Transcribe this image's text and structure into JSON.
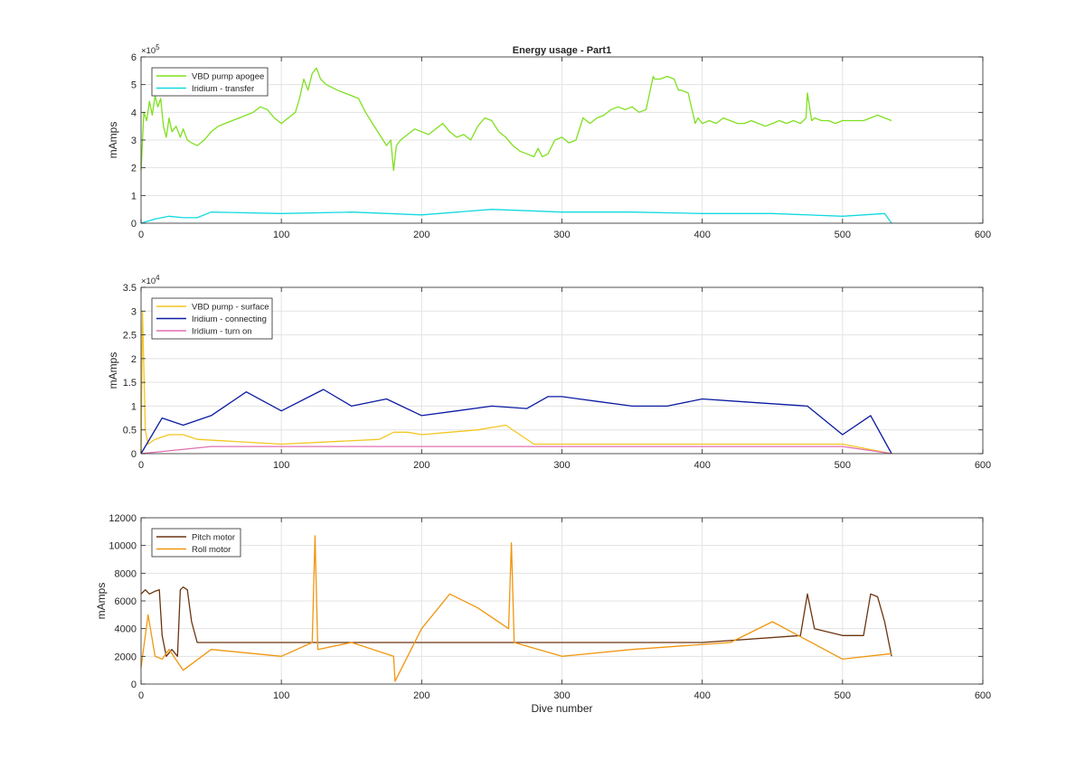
{
  "figure_title": "Energy usage - Part1",
  "chart_data": [
    {
      "type": "line",
      "title": "Energy usage - Part1",
      "xlabel": "",
      "ylabel": "mAmps",
      "xlim": [
        0,
        600
      ],
      "ylim": [
        0,
        600000
      ],
      "x_ticks": [
        0,
        100,
        200,
        300,
        400,
        500,
        600
      ],
      "y_ticks": [
        0,
        100000,
        200000,
        300000,
        400000,
        500000,
        600000
      ],
      "y_tick_labels": [
        "0",
        "1",
        "2",
        "3",
        "4",
        "5",
        "6"
      ],
      "y_exponent_label": "×10",
      "y_exponent_power": "5",
      "grid": true,
      "legend_position": "top-left",
      "series": [
        {
          "name": "VBD pump apogee",
          "color": "#7fe01f",
          "x": [
            0,
            2,
            4,
            6,
            8,
            10,
            12,
            14,
            16,
            18,
            20,
            22,
            25,
            28,
            30,
            33,
            36,
            40,
            45,
            50,
            55,
            60,
            65,
            70,
            75,
            80,
            85,
            90,
            95,
            100,
            105,
            110,
            113,
            116,
            119,
            122,
            125,
            128,
            132,
            136,
            140,
            145,
            150,
            155,
            160,
            165,
            170,
            175,
            178,
            180,
            182,
            185,
            190,
            195,
            200,
            205,
            210,
            215,
            220,
            225,
            230,
            235,
            240,
            245,
            250,
            255,
            260,
            265,
            270,
            275,
            280,
            283,
            286,
            290,
            295,
            300,
            305,
            310,
            315,
            320,
            325,
            330,
            335,
            340,
            345,
            350,
            355,
            360,
            365,
            366,
            370,
            375,
            380,
            383,
            385,
            390,
            395,
            397,
            400,
            405,
            410,
            415,
            420,
            425,
            430,
            435,
            440,
            445,
            450,
            455,
            460,
            465,
            470,
            474,
            475,
            478,
            480,
            485,
            490,
            495,
            500,
            505,
            510,
            515,
            520,
            525,
            530,
            535
          ],
          "values": [
            190000,
            400000,
            370000,
            440000,
            390000,
            460000,
            420000,
            450000,
            350000,
            310000,
            380000,
            330000,
            350000,
            310000,
            340000,
            300000,
            290000,
            280000,
            300000,
            330000,
            350000,
            360000,
            370000,
            380000,
            390000,
            400000,
            420000,
            410000,
            380000,
            360000,
            380000,
            400000,
            450000,
            520000,
            480000,
            540000,
            560000,
            520000,
            500000,
            490000,
            480000,
            470000,
            460000,
            450000,
            400000,
            360000,
            320000,
            280000,
            300000,
            190000,
            280000,
            300000,
            320000,
            340000,
            330000,
            320000,
            340000,
            360000,
            330000,
            310000,
            320000,
            300000,
            350000,
            380000,
            370000,
            330000,
            310000,
            280000,
            260000,
            250000,
            240000,
            270000,
            240000,
            250000,
            300000,
            310000,
            290000,
            300000,
            380000,
            360000,
            380000,
            390000,
            410000,
            420000,
            410000,
            420000,
            400000,
            410000,
            530000,
            520000,
            520000,
            530000,
            520000,
            480000,
            480000,
            470000,
            360000,
            380000,
            360000,
            370000,
            360000,
            380000,
            370000,
            360000,
            360000,
            370000,
            360000,
            350000,
            360000,
            370000,
            360000,
            370000,
            360000,
            380000,
            470000,
            370000,
            380000,
            370000,
            370000,
            360000,
            370000,
            370000,
            370000,
            370000,
            380000,
            390000,
            380000,
            370000
          ]
        },
        {
          "name": "Iridium - transfer",
          "color": "#11d9e0",
          "x": [
            0,
            10,
            20,
            30,
            40,
            50,
            100,
            150,
            200,
            250,
            300,
            350,
            400,
            450,
            500,
            530,
            535
          ],
          "values": [
            0,
            15000,
            25000,
            20000,
            20000,
            40000,
            35000,
            40000,
            30000,
            50000,
            40000,
            40000,
            35000,
            35000,
            25000,
            35000,
            0
          ]
        }
      ]
    },
    {
      "type": "line",
      "title": "",
      "xlabel": "",
      "ylabel": "mAmps",
      "xlim": [
        0,
        600
      ],
      "ylim": [
        0,
        35000
      ],
      "x_ticks": [
        0,
        100,
        200,
        300,
        400,
        500,
        600
      ],
      "y_ticks": [
        0,
        5000,
        10000,
        15000,
        20000,
        25000,
        30000,
        35000
      ],
      "y_tick_labels": [
        "0",
        "0.5",
        "1",
        "1.5",
        "2",
        "2.5",
        "3",
        "3.5"
      ],
      "y_exponent_label": "×10",
      "y_exponent_power": "4",
      "grid": true,
      "legend_position": "top-left",
      "series": [
        {
          "name": "VBD pump - surface",
          "color": "#f3c623",
          "x": [
            0,
            1,
            2,
            3,
            5,
            10,
            20,
            30,
            40,
            100,
            170,
            180,
            190,
            200,
            220,
            240,
            260,
            280,
            300,
            400,
            500,
            535
          ],
          "values": [
            0,
            30000,
            18000,
            5000,
            2000,
            3000,
            4000,
            4000,
            3000,
            2000,
            3000,
            4500,
            4500,
            4000,
            4500,
            5000,
            6000,
            2000,
            2000,
            2000,
            2000,
            0
          ]
        },
        {
          "name": "Iridium - connecting",
          "color": "#0a1aa0",
          "x": [
            0,
            15,
            30,
            50,
            75,
            100,
            130,
            150,
            175,
            200,
            225,
            250,
            275,
            290,
            300,
            325,
            350,
            375,
            400,
            425,
            450,
            475,
            500,
            520,
            535
          ],
          "values": [
            0,
            7500,
            6000,
            8000,
            13000,
            9000,
            13500,
            10000,
            11500,
            8000,
            9000,
            10000,
            9500,
            12000,
            12000,
            11000,
            10000,
            10000,
            11500,
            11000,
            10500,
            10000,
            4000,
            8000,
            0
          ]
        },
        {
          "name": "Iridium - turn on",
          "color": "#e26fb0",
          "x": [
            0,
            50,
            100,
            150,
            200,
            250,
            300,
            350,
            400,
            450,
            500,
            535
          ],
          "values": [
            0,
            1500,
            1500,
            1500,
            1500,
            1500,
            1500,
            1500,
            1500,
            1500,
            1500,
            0
          ]
        }
      ]
    },
    {
      "type": "line",
      "title": "",
      "xlabel": "Dive number",
      "ylabel": "mAmps",
      "xlim": [
        0,
        600
      ],
      "ylim": [
        0,
        12000
      ],
      "x_ticks": [
        0,
        100,
        200,
        300,
        400,
        500,
        600
      ],
      "y_ticks": [
        0,
        2000,
        4000,
        6000,
        8000,
        10000,
        12000
      ],
      "y_tick_labels": [
        "0",
        "2000",
        "4000",
        "6000",
        "8000",
        "10000",
        "12000"
      ],
      "grid": true,
      "legend_position": "top-left",
      "series": [
        {
          "name": "Pitch motor",
          "color": "#6b3410",
          "x": [
            0,
            3,
            6,
            10,
            13,
            15,
            18,
            22,
            26,
            28,
            30,
            33,
            36,
            40,
            100,
            200,
            300,
            400,
            470,
            475,
            480,
            500,
            515,
            520,
            525,
            530,
            535
          ],
          "values": [
            6500,
            6800,
            6500,
            6700,
            6800,
            3500,
            2000,
            2500,
            2000,
            6800,
            7000,
            6800,
            4500,
            3000,
            3000,
            3000,
            3000,
            3000,
            3500,
            6500,
            4000,
            3500,
            3500,
            6500,
            6300,
            4500,
            2000
          ]
        },
        {
          "name": "Roll motor",
          "color": "#f0960f",
          "x": [
            0,
            5,
            10,
            15,
            20,
            30,
            50,
            100,
            122,
            124,
            126,
            150,
            180,
            181,
            200,
            220,
            240,
            262,
            264,
            266,
            300,
            350,
            420,
            450,
            500,
            535
          ],
          "values": [
            1200,
            5000,
            2000,
            1800,
            2500,
            1000,
            2500,
            2000,
            3000,
            10700,
            2500,
            3000,
            2000,
            200,
            4000,
            6500,
            5500,
            4000,
            10200,
            3000,
            2000,
            2500,
            3000,
            4500,
            1800,
            2200
          ]
        }
      ]
    }
  ]
}
